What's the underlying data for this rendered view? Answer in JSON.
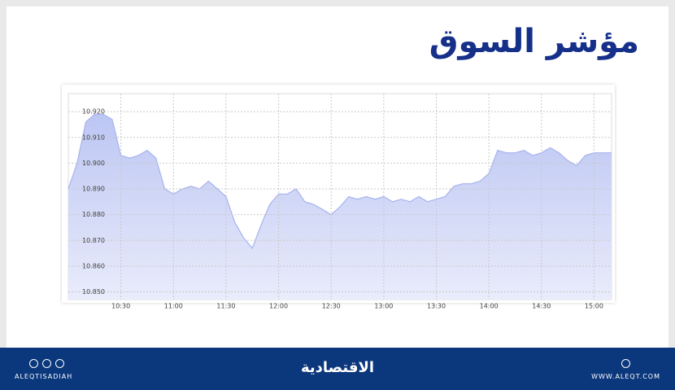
{
  "chart_data": {
    "type": "area",
    "title": "مؤشر السوق",
    "x": [
      "10:00",
      "10:05",
      "10:10",
      "10:15",
      "10:20",
      "10:25",
      "10:30",
      "10:35",
      "10:40",
      "10:45",
      "10:50",
      "10:55",
      "11:00",
      "11:05",
      "11:10",
      "11:15",
      "11:20",
      "11:25",
      "11:30",
      "11:35",
      "11:40",
      "11:45",
      "11:50",
      "11:55",
      "12:00",
      "12:05",
      "12:10",
      "12:15",
      "12:20",
      "12:25",
      "12:30",
      "12:35",
      "12:40",
      "12:45",
      "12:50",
      "12:55",
      "13:00",
      "13:05",
      "13:10",
      "13:15",
      "13:20",
      "13:25",
      "13:30",
      "13:35",
      "13:40",
      "13:45",
      "13:50",
      "13:55",
      "14:00",
      "14:05",
      "14:10",
      "14:15",
      "14:20",
      "14:25",
      "14:30",
      "14:35",
      "14:40",
      "14:45",
      "14:50",
      "14:55",
      "15:00",
      "15:05",
      "15:10"
    ],
    "values": [
      10890,
      10900,
      10916,
      10919,
      10919,
      10917,
      10903,
      10902,
      10903,
      10905,
      10902,
      10890,
      10888,
      10890,
      10891,
      10890,
      10893,
      10890,
      10887,
      10877,
      10871,
      10867,
      10876,
      10884,
      10888,
      10888,
      10890,
      10885,
      10884,
      10882,
      10880,
      10883,
      10887,
      10886,
      10887,
      10886,
      10887,
      10885,
      10886,
      10885,
      10887,
      10885,
      10886,
      10887,
      10891,
      10892,
      10892,
      10893,
      10896,
      10905,
      10904,
      10904,
      10905,
      10903,
      10904,
      10906,
      10904,
      10901,
      10899,
      10903,
      10904,
      10904,
      10904
    ],
    "color": "#a7b3ef",
    "xlim": [
      "10:00",
      "15:10"
    ],
    "xticks": [
      "10:30",
      "11:00",
      "11:30",
      "12:00",
      "12:30",
      "13:00",
      "13:30",
      "14:00",
      "14:30",
      "15:00"
    ],
    "ylim": [
      10847,
      10927
    ],
    "yticks": [
      {
        "value": 10850,
        "label": "10.850"
      },
      {
        "value": 10860,
        "label": "10.860"
      },
      {
        "value": 10870,
        "label": "10.870"
      },
      {
        "value": 10880,
        "label": "10.880"
      },
      {
        "value": 10890,
        "label": "10.890"
      },
      {
        "value": 10900,
        "label": "10.900"
      },
      {
        "value": 10910,
        "label": "10.910"
      },
      {
        "value": 10920,
        "label": "10.920"
      }
    ],
    "grid": true
  },
  "footer": {
    "handle": "ALEQTISADIAH",
    "brand": "الاقتصادية",
    "website": "WWW.ALEQT.COM"
  }
}
